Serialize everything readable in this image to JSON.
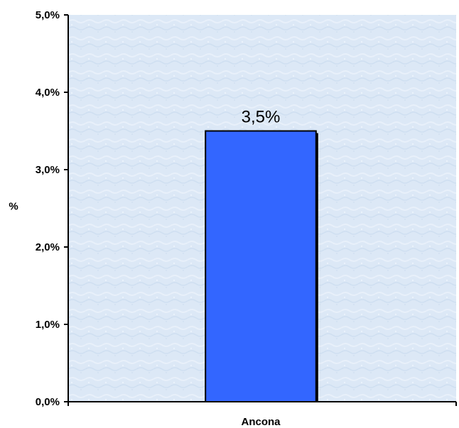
{
  "chart_data": {
    "type": "bar",
    "title": "",
    "xlabel": "",
    "ylabel": "%",
    "categories": [
      "Ancona"
    ],
    "values": [
      3.5
    ],
    "data_labels": [
      "3,5%"
    ],
    "ylim": [
      0,
      5
    ],
    "yticks": [
      {
        "value": 0,
        "label": "0,0%"
      },
      {
        "value": 1,
        "label": "1,0%"
      },
      {
        "value": 2,
        "label": "2,0%"
      },
      {
        "value": 3,
        "label": "3,0%"
      },
      {
        "value": 4,
        "label": "4,0%"
      },
      {
        "value": 5,
        "label": "5,0%"
      }
    ],
    "grid": false,
    "legend": "none",
    "colors": {
      "bar": "#3366FF",
      "plot_background": "#DDE9F7",
      "axis": "#000000"
    }
  }
}
